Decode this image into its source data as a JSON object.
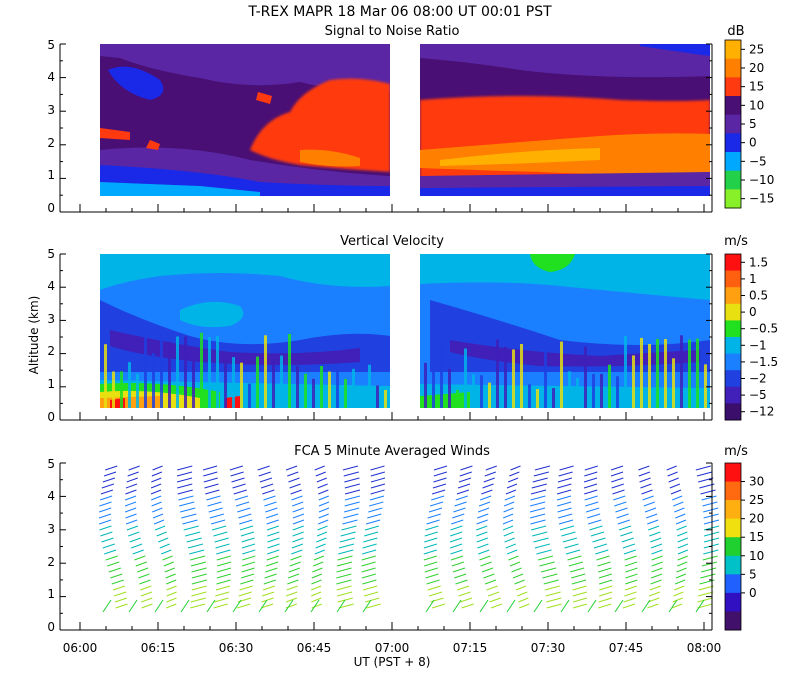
{
  "header": {
    "title": "T-REX   MAPR 18 Mar 06   08:00 UT   00:01   PST"
  },
  "xaxis": {
    "label": "UT  (PST + 8)",
    "tick_labels": [
      "06:00",
      "06:15",
      "06:30",
      "06:45",
      "07:00",
      "07:15",
      "07:30",
      "07:45",
      "08:00"
    ]
  },
  "yaxis": {
    "label": "Altitude (km)",
    "tick_labels": [
      "0",
      "1",
      "2",
      "3",
      "4",
      "5"
    ]
  },
  "chart_data": [
    {
      "type": "heatmap",
      "title": "Signal to Noise Ratio",
      "xlabel": "UT  (PST + 8)",
      "ylabel": "Altitude (km)",
      "xlim": [
        "06:00",
        "08:00"
      ],
      "ylim": [
        0,
        5
      ],
      "data_gap": [
        "06:58",
        "07:01"
      ],
      "colorbar": {
        "unit": "dB",
        "levels": [
          "25",
          "20",
          "15",
          "10",
          "5",
          "0",
          "−5",
          "−10",
          "−15"
        ],
        "colors": [
          "#ffb000",
          "#ff7f00",
          "#ff3a10",
          "#4a0f74",
          "#5a26a4",
          "#1a28e8",
          "#00a8ff",
          "#22d04a",
          "#88f028"
        ]
      }
    },
    {
      "type": "heatmap",
      "title": "Vertical Velocity",
      "xlabel": "UT  (PST + 8)",
      "ylabel": "Altitude (km)",
      "xlim": [
        "06:00",
        "08:00"
      ],
      "ylim": [
        0,
        5
      ],
      "colorbar": {
        "unit": "m/s",
        "levels": [
          "1.5",
          "1",
          "0.5",
          "0",
          "−0.5",
          "−1",
          "−1.5",
          "−2",
          "−5",
          "−12"
        ],
        "colors": [
          "#ff1010",
          "#ff6010",
          "#ffa010",
          "#e8e010",
          "#20e020",
          "#00b4e8",
          "#1a80ff",
          "#2040e0",
          "#4020b8",
          "#3a0e6a"
        ]
      }
    },
    {
      "type": "wind_barbs",
      "title": "FCA 5 Minute Averaged Winds",
      "xlabel": "UT  (PST + 8)",
      "ylabel": "Altitude (km)",
      "xlim": [
        "06:00",
        "08:00"
      ],
      "ylim": [
        0,
        5
      ],
      "colorbar": {
        "unit": "m/s",
        "levels": [
          "30",
          "25",
          "20",
          "15",
          "10",
          "5",
          "0"
        ],
        "colors": [
          "#ff1010",
          "#ff6a10",
          "#ffb010",
          "#f0e010",
          "#20d030",
          "#00c0c8",
          "#2060ff",
          "#3010c0",
          "#40106a"
        ]
      }
    }
  ]
}
